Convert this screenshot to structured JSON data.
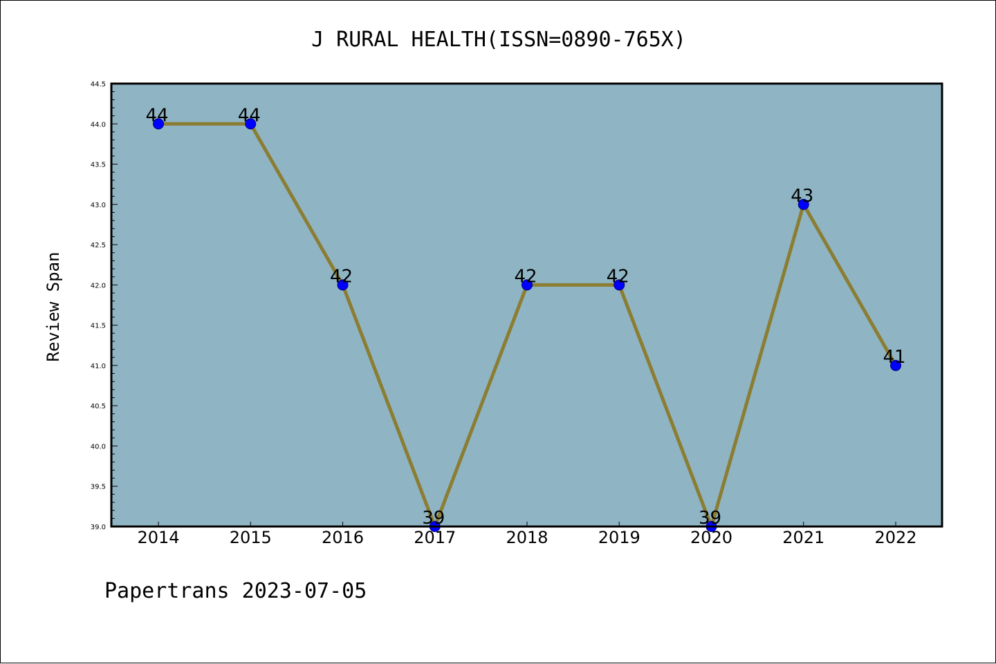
{
  "chart_data": {
    "type": "line",
    "title": "J RURAL HEALTH(ISSN=0890-765X)",
    "xlabel": "",
    "ylabel": "Review Span",
    "footer": "Papertrans 2023-07-05",
    "categories": [
      "2014",
      "2015",
      "2016",
      "2017",
      "2018",
      "2019",
      "2020",
      "2021",
      "2022"
    ],
    "values": [
      44,
      44,
      42,
      39,
      42,
      42,
      39,
      43,
      41
    ],
    "data_labels": [
      "44",
      "44",
      "42",
      "39",
      "42",
      "42",
      "39",
      "43",
      "41"
    ],
    "ylim": [
      39.0,
      44.5
    ],
    "yticks": [
      "39.0",
      "39.5",
      "40.0",
      "40.5",
      "41.0",
      "41.5",
      "42.0",
      "42.5",
      "43.0",
      "43.5",
      "44.0",
      "44.5"
    ],
    "grid": false,
    "legend": "none",
    "colors": {
      "plot_background": "#8fb5c4",
      "line": "#8b7d32",
      "marker": "#0000ff",
      "marker_edge": "#000080"
    }
  }
}
